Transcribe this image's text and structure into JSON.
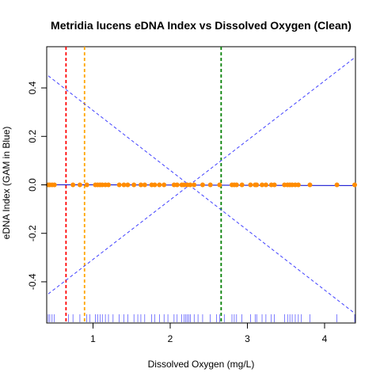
{
  "chart_data": {
    "type": "scatter",
    "title": "Metridia lucens eDNA Index vs Dissolved Oxygen (Clean)",
    "xlabel": "Dissolved Oxygen (mg/L)",
    "ylabel": "eDNA Index (GAM in Blue)",
    "xlim": [
      0.4,
      4.4
    ],
    "ylim": [
      -0.57,
      0.57
    ],
    "x_ticks": [
      1,
      2,
      3,
      4
    ],
    "y_ticks": [
      -0.4,
      -0.2,
      0.0,
      0.2,
      0.4
    ],
    "x_tick_labels": [
      "1",
      "2",
      "3",
      "4"
    ],
    "y_tick_labels": [
      "-0.4",
      "-0.2",
      "0.0",
      "0.2",
      "0.4"
    ],
    "grid": false,
    "points": {
      "color": "#ff8c00",
      "x": [
        0.42,
        0.44,
        0.47,
        0.5,
        0.74,
        0.83,
        0.92,
        1.03,
        1.06,
        1.09,
        1.12,
        1.16,
        1.2,
        1.34,
        1.4,
        1.45,
        1.53,
        1.62,
        1.67,
        1.76,
        1.8,
        1.86,
        1.92,
        2.05,
        2.09,
        2.15,
        2.18,
        2.22,
        2.26,
        2.31,
        2.42,
        2.52,
        2.64,
        2.8,
        2.83,
        2.86,
        2.93,
        3.04,
        3.1,
        3.12,
        3.19,
        3.24,
        3.31,
        3.35,
        3.48,
        3.52,
        3.55,
        3.58,
        3.62,
        3.66,
        3.81,
        4.16,
        4.39
      ],
      "y": [
        0,
        0,
        0,
        0,
        0,
        0,
        0,
        0,
        0,
        0,
        0,
        0,
        0,
        0,
        0,
        0,
        0,
        0,
        0,
        0,
        0,
        0,
        0,
        0,
        0,
        0,
        0,
        0,
        0,
        0,
        0,
        0,
        0,
        0,
        0,
        0,
        0,
        0,
        0,
        0,
        0,
        0,
        0,
        0,
        0,
        0,
        0,
        0,
        0,
        0,
        0,
        0,
        0
      ]
    },
    "gam_fit": {
      "color": "#0000cd",
      "x": [
        0.42,
        4.39
      ],
      "y": [
        0.0005,
        -0.003
      ]
    },
    "confidence_band": {
      "color": "#4040ff",
      "upper": {
        "x": [
          0.42,
          4.39
        ],
        "y": [
          -0.45,
          0.525
        ]
      },
      "lower": {
        "x": [
          0.42,
          4.39
        ],
        "y": [
          0.45,
          -0.53
        ]
      }
    },
    "vertical_lines": [
      {
        "x": 0.65,
        "color": "#ff0000"
      },
      {
        "x": 0.89,
        "color": "#ffa500"
      },
      {
        "x": 2.66,
        "color": "#008000"
      }
    ],
    "rug": {
      "color": "#2a2aff",
      "x": [
        0.42,
        0.44,
        0.47,
        0.5,
        0.68,
        0.74,
        0.83,
        0.92,
        0.96,
        1.03,
        1.06,
        1.09,
        1.12,
        1.16,
        1.2,
        1.26,
        1.34,
        1.4,
        1.45,
        1.53,
        1.58,
        1.62,
        1.67,
        1.76,
        1.8,
        1.86,
        1.92,
        1.97,
        2.05,
        2.09,
        2.15,
        2.18,
        2.2,
        2.22,
        2.24,
        2.26,
        2.31,
        2.36,
        2.42,
        2.52,
        2.6,
        2.64,
        2.7,
        2.8,
        2.83,
        2.86,
        2.93,
        3.04,
        3.1,
        3.12,
        3.19,
        3.24,
        3.31,
        3.35,
        3.48,
        3.52,
        3.55,
        3.58,
        3.62,
        3.66,
        3.7,
        3.81,
        4.16,
        4.39
      ]
    }
  }
}
